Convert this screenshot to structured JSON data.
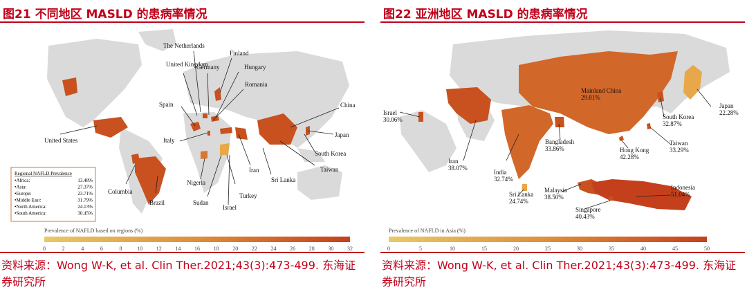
{
  "figure_world": {
    "title": "图21 不同地区 MASLD 的患病率情况",
    "countries": [
      "The Netherlands",
      "Finland",
      "United Kingdom",
      "Germany",
      "Hungary",
      "Romania",
      "Spain",
      "China",
      "United States",
      "Japan",
      "Italy",
      "South Korea",
      "Iran",
      "Taiwan",
      "Sri Lanka",
      "Nigeria",
      "Columbia",
      "Turkey",
      "Brazil",
      "Sudan",
      "Israel"
    ],
    "legend_title": "Regional NAFLD Prevalence",
    "regions": [
      {
        "name": "•Africa:",
        "value": "13.48%"
      },
      {
        "name": "•Asia:",
        "value": "27.37%"
      },
      {
        "name": "•Europe:",
        "value": "23.71%"
      },
      {
        "name": "•Middle East:",
        "value": "31.79%"
      },
      {
        "name": "•North America:",
        "value": "24.13%"
      },
      {
        "name": "•South America:",
        "value": "30.45%"
      }
    ],
    "scale_title": "Prevalence of NAFLD based on regions (%)",
    "scale_ticks": [
      "0",
      "2",
      "4",
      "6",
      "8",
      "10",
      "12",
      "14",
      "16",
      "18",
      "20",
      "22",
      "24",
      "26",
      "28",
      "30",
      "32"
    ],
    "source": "资料来源：Wong W-K, et al. Clin Ther.2021;43(3):473-499. 东海证券研究所"
  },
  "figure_asia": {
    "title": "图22 亚洲地区 MASLD 的患病率情况",
    "countries": [
      {
        "name": "Mainland China",
        "value": "29.81%"
      },
      {
        "name": "Japan",
        "value": "22.28%"
      },
      {
        "name": "South Korea",
        "value": "32.87%"
      },
      {
        "name": "Israel",
        "value": "30.06%"
      },
      {
        "name": "Taiwan",
        "value": "33.29%"
      },
      {
        "name": "Hong Kong",
        "value": "42.28%"
      },
      {
        "name": "Bangladesh",
        "value": "33.86%"
      },
      {
        "name": "Iran",
        "value": "38.07%"
      },
      {
        "name": "India",
        "value": "32.74%"
      },
      {
        "name": "Indonesia",
        "value": "51.04%"
      },
      {
        "name": "Malaysia",
        "value": "38.50%"
      },
      {
        "name": "Sri Lanka",
        "value": "24.74%"
      },
      {
        "name": "Singapore",
        "value": "40.43%"
      }
    ],
    "scale_title": "Prevalence of NAFLD in Asia (%)",
    "scale_ticks": [
      "0",
      "5",
      "10",
      "15",
      "20",
      "25",
      "30",
      "35",
      "40",
      "45",
      "50"
    ],
    "source": "资料来源：Wong W-K, et al. Clin Ther.2021;43(3):473-499. 东海证券研究所"
  },
  "colors": {
    "accent": "#c0001a",
    "map_gray": "#dadada",
    "fill_high": "#c8511f",
    "fill_mid": "#d9772e",
    "fill_low": "#e8a84a",
    "scale_start": "#e8c96a",
    "scale_end": "#c4401c"
  }
}
